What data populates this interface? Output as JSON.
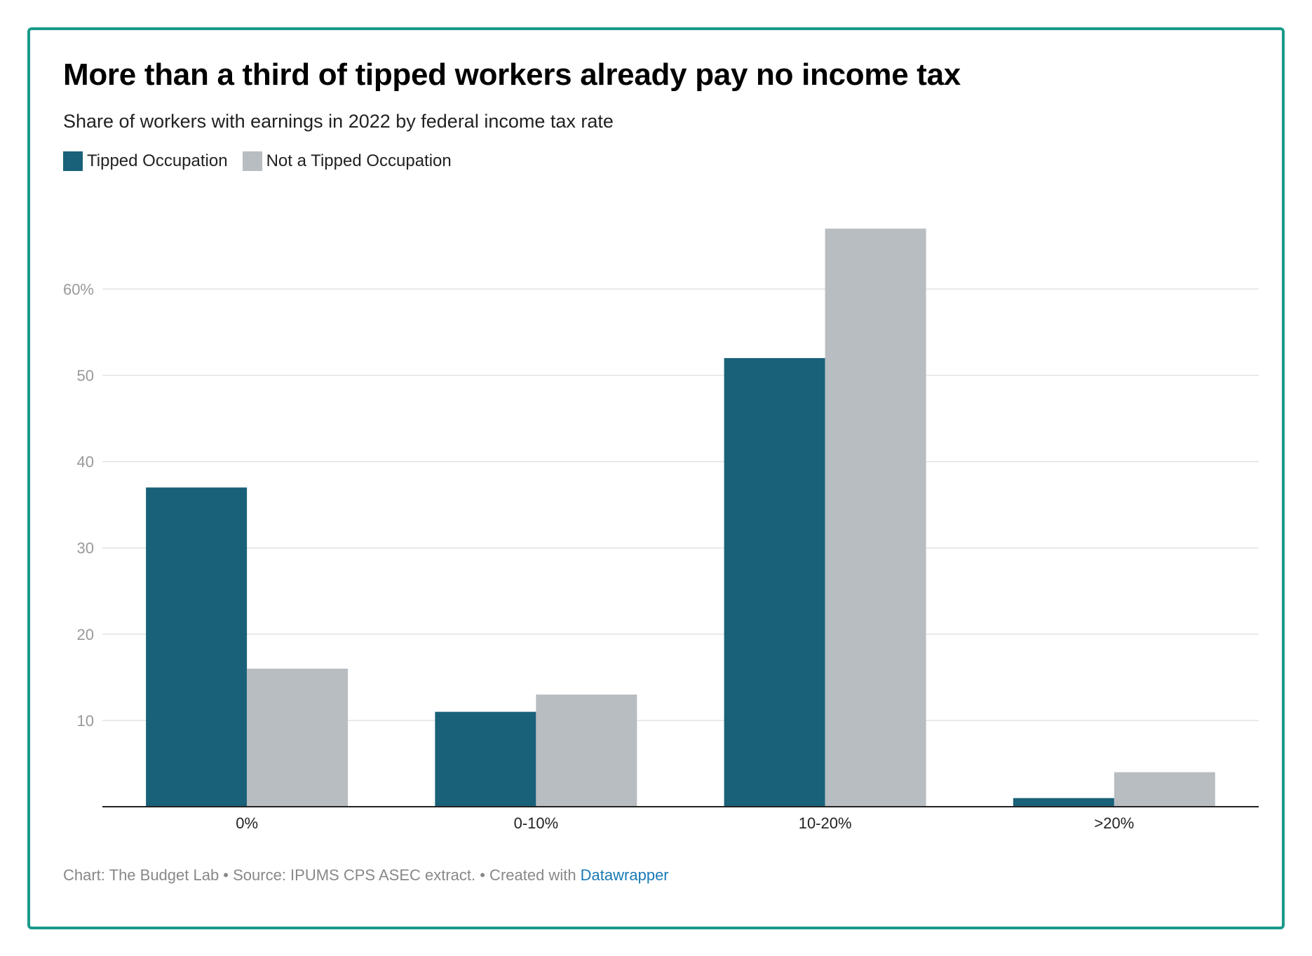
{
  "title": "More than a third of tipped workers already pay no income tax",
  "subtitle": "Share of workers with earnings in 2022 by federal income tax rate",
  "legend": [
    {
      "label": "Tipped Occupation",
      "color": "#196179"
    },
    {
      "label": "Not a Tipped Occupation",
      "color": "#b8bdc1"
    }
  ],
  "footer": {
    "text": "Chart: The Budget Lab • Source: IPUMS CPS ASEC extract. • Created with ",
    "link_label": "Datawrapper"
  },
  "colors": {
    "border": "#1b9a8a",
    "tipped": "#196179",
    "not_tipped": "#b8bdc1",
    "gridline": "#e2e2e2",
    "tick_text": "#999999",
    "link": "#1a7ab5"
  },
  "chart_data": {
    "type": "bar",
    "categories": [
      "0%",
      "0-10%",
      "10-20%",
      ">20%"
    ],
    "series": [
      {
        "name": "Tipped Occupation",
        "values": [
          37,
          11,
          52,
          1
        ]
      },
      {
        "name": "Not a Tipped Occupation",
        "values": [
          16,
          13,
          67,
          4
        ]
      }
    ],
    "yticks": [
      10,
      20,
      30,
      40,
      50,
      60
    ],
    "ytick_labels": [
      "10",
      "20",
      "30",
      "40",
      "50",
      "60%"
    ],
    "ylim": [
      0,
      70
    ],
    "xlabel": "",
    "ylabel": "",
    "grid": true,
    "legend_position": "top-left"
  }
}
